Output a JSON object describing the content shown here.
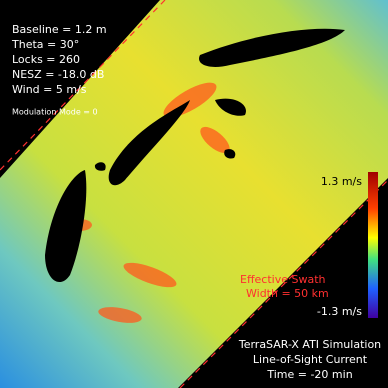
{
  "parameters": {
    "baseline": "Baseline = 1.2 m",
    "theta": "Theta = 30°",
    "locks": "Locks = 260",
    "nesz": "NESZ = -18.0 dB",
    "wind": "Wind = 5 m/s",
    "modulation_mode": "Modulation Mode = 0"
  },
  "colorbar": {
    "max_label": "1.3 m/s",
    "min_label": "-1.3 m/s"
  },
  "swath_annotation": {
    "line1": "Effective Swath",
    "line2": "Width = 50 km"
  },
  "caption": {
    "line1": "TerraSAR-X ATI Simulation",
    "line2": "Line-of-Sight Current",
    "line3": "Time = -20 min"
  }
}
